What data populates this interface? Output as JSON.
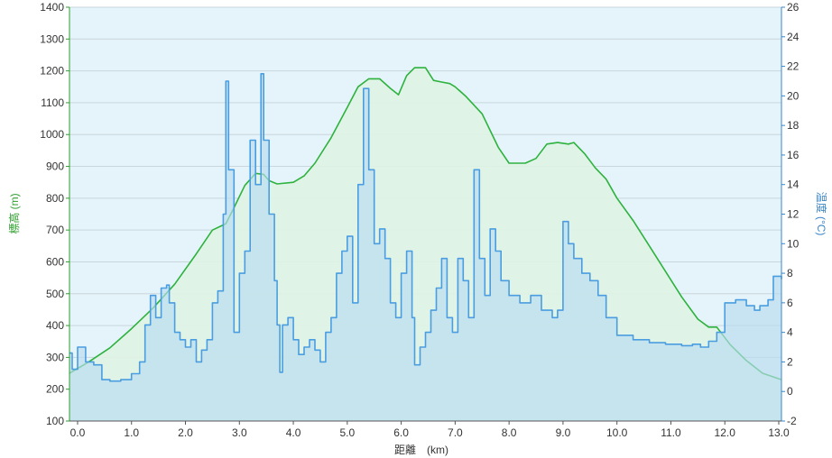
{
  "chart_data": {
    "type": "line",
    "xlabel": "距離　(km)",
    "ylabel_left": "標高 (m)",
    "ylabel_right": "温度 (°C)",
    "xlim": [
      -0.15,
      13.05
    ],
    "ylim_left": [
      100,
      1400
    ],
    "ylim_right": [
      -2,
      26
    ],
    "x_ticks": [
      "0.0",
      "1.0",
      "2.0",
      "3.0",
      "4.0",
      "5.0",
      "6.0",
      "7.0",
      "8.0",
      "9.0",
      "10.0",
      "11.0",
      "12.0",
      "13.0"
    ],
    "y_ticks_left": [
      "100",
      "200",
      "300",
      "400",
      "500",
      "600",
      "700",
      "800",
      "900",
      "1000",
      "1100",
      "1200",
      "1300",
      "1400"
    ],
    "y_ticks_right": [
      "-2",
      "0",
      "2",
      "4",
      "6",
      "8",
      "10",
      "12",
      "14",
      "16",
      "18",
      "20",
      "22",
      "24",
      "26"
    ],
    "grid": true,
    "colors": {
      "elevation_line": "#2eb23e",
      "elevation_fill": "#dff3e4",
      "temperature_line": "#4a9de0",
      "temperature_fill": "#b9dcf0",
      "plot_background": "#e4f4fa",
      "grid": "#c9d6dc",
      "left_axis": "#2e9e2e",
      "right_axis": "#3a86c8"
    },
    "series": [
      {
        "axis": "left",
        "x": [
          -0.15,
          0.2,
          0.6,
          1.0,
          1.4,
          1.8,
          2.2,
          2.5,
          2.75,
          2.9,
          3.1,
          3.3,
          3.45,
          3.55,
          3.7,
          4.0,
          4.2,
          4.4,
          4.7,
          5.0,
          5.2,
          5.4,
          5.6,
          5.8,
          5.95,
          6.1,
          6.25,
          6.45,
          6.6,
          6.75,
          6.9,
          7.0,
          7.2,
          7.5,
          7.8,
          8.0,
          8.3,
          8.5,
          8.7,
          8.9,
          9.1,
          9.2,
          9.4,
          9.6,
          9.8,
          10.0,
          10.3,
          10.6,
          10.9,
          11.2,
          11.5,
          11.7,
          11.85,
          12.1,
          12.4,
          12.7,
          13.05
        ],
        "y": [
          250,
          285,
          330,
          390,
          455,
          530,
          625,
          700,
          720,
          770,
          840,
          878,
          875,
          855,
          845,
          850,
          870,
          910,
          990,
          1085,
          1150,
          1175,
          1175,
          1145,
          1125,
          1185,
          1210,
          1210,
          1170,
          1165,
          1160,
          1150,
          1120,
          1065,
          960,
          910,
          910,
          925,
          970,
          975,
          970,
          975,
          940,
          895,
          860,
          800,
          730,
          650,
          570,
          490,
          420,
          395,
          395,
          340,
          290,
          250,
          230
        ]
      },
      {
        "axis": "right",
        "x": [
          -0.15,
          -0.1,
          0.0,
          0.15,
          0.3,
          0.45,
          0.6,
          0.8,
          1.0,
          1.15,
          1.25,
          1.35,
          1.45,
          1.55,
          1.65,
          1.7,
          1.8,
          1.9,
          2.0,
          2.1,
          2.2,
          2.3,
          2.4,
          2.5,
          2.6,
          2.7,
          2.75,
          2.8,
          2.9,
          3.0,
          3.1,
          3.2,
          3.3,
          3.4,
          3.45,
          3.55,
          3.65,
          3.7,
          3.75,
          3.8,
          3.9,
          4.0,
          4.1,
          4.2,
          4.3,
          4.4,
          4.5,
          4.6,
          4.7,
          4.8,
          4.9,
          5.0,
          5.1,
          5.2,
          5.3,
          5.4,
          5.5,
          5.6,
          5.7,
          5.8,
          5.9,
          6.0,
          6.1,
          6.2,
          6.25,
          6.35,
          6.45,
          6.55,
          6.65,
          6.75,
          6.85,
          6.95,
          7.05,
          7.15,
          7.25,
          7.35,
          7.45,
          7.55,
          7.65,
          7.75,
          7.85,
          8.0,
          8.2,
          8.4,
          8.6,
          8.8,
          8.9,
          9.0,
          9.1,
          9.2,
          9.35,
          9.5,
          9.65,
          9.8,
          10.0,
          10.3,
          10.6,
          10.9,
          11.2,
          11.4,
          11.55,
          11.7,
          11.85,
          12.0,
          12.2,
          12.4,
          12.55,
          12.65,
          12.8,
          12.9,
          13.05
        ],
        "y": [
          2.6,
          1.5,
          3.0,
          2.0,
          1.8,
          0.8,
          0.7,
          0.8,
          1.2,
          2.0,
          4.5,
          6.5,
          5.0,
          7.0,
          7.2,
          6.0,
          4.0,
          3.5,
          3.0,
          3.5,
          2.0,
          2.8,
          3.5,
          6.0,
          6.8,
          12.0,
          21.0,
          15.0,
          4.0,
          8.0,
          9.5,
          17.0,
          14.0,
          21.5,
          17.0,
          12.0,
          7.5,
          4.5,
          1.3,
          4.5,
          5.0,
          3.5,
          2.5,
          3.0,
          3.5,
          2.8,
          2.0,
          4.0,
          5.0,
          8.0,
          9.5,
          10.5,
          6.0,
          14.0,
          20.5,
          15.0,
          10.0,
          11.0,
          9.0,
          6.0,
          5.0,
          8.0,
          9.5,
          5.0,
          1.8,
          3.0,
          4.0,
          5.5,
          7.0,
          9.0,
          5.0,
          4.0,
          9.0,
          7.5,
          5.0,
          15.0,
          9.0,
          6.5,
          11.0,
          9.5,
          7.5,
          6.5,
          6.0,
          6.5,
          5.5,
          5.0,
          5.5,
          11.5,
          10.0,
          9.0,
          8.0,
          7.5,
          6.5,
          5.0,
          3.8,
          3.5,
          3.3,
          3.2,
          3.1,
          3.2,
          3.0,
          3.4,
          4.0,
          6.0,
          6.2,
          5.8,
          5.5,
          5.8,
          6.2,
          7.8,
          7.6
        ]
      }
    ]
  }
}
